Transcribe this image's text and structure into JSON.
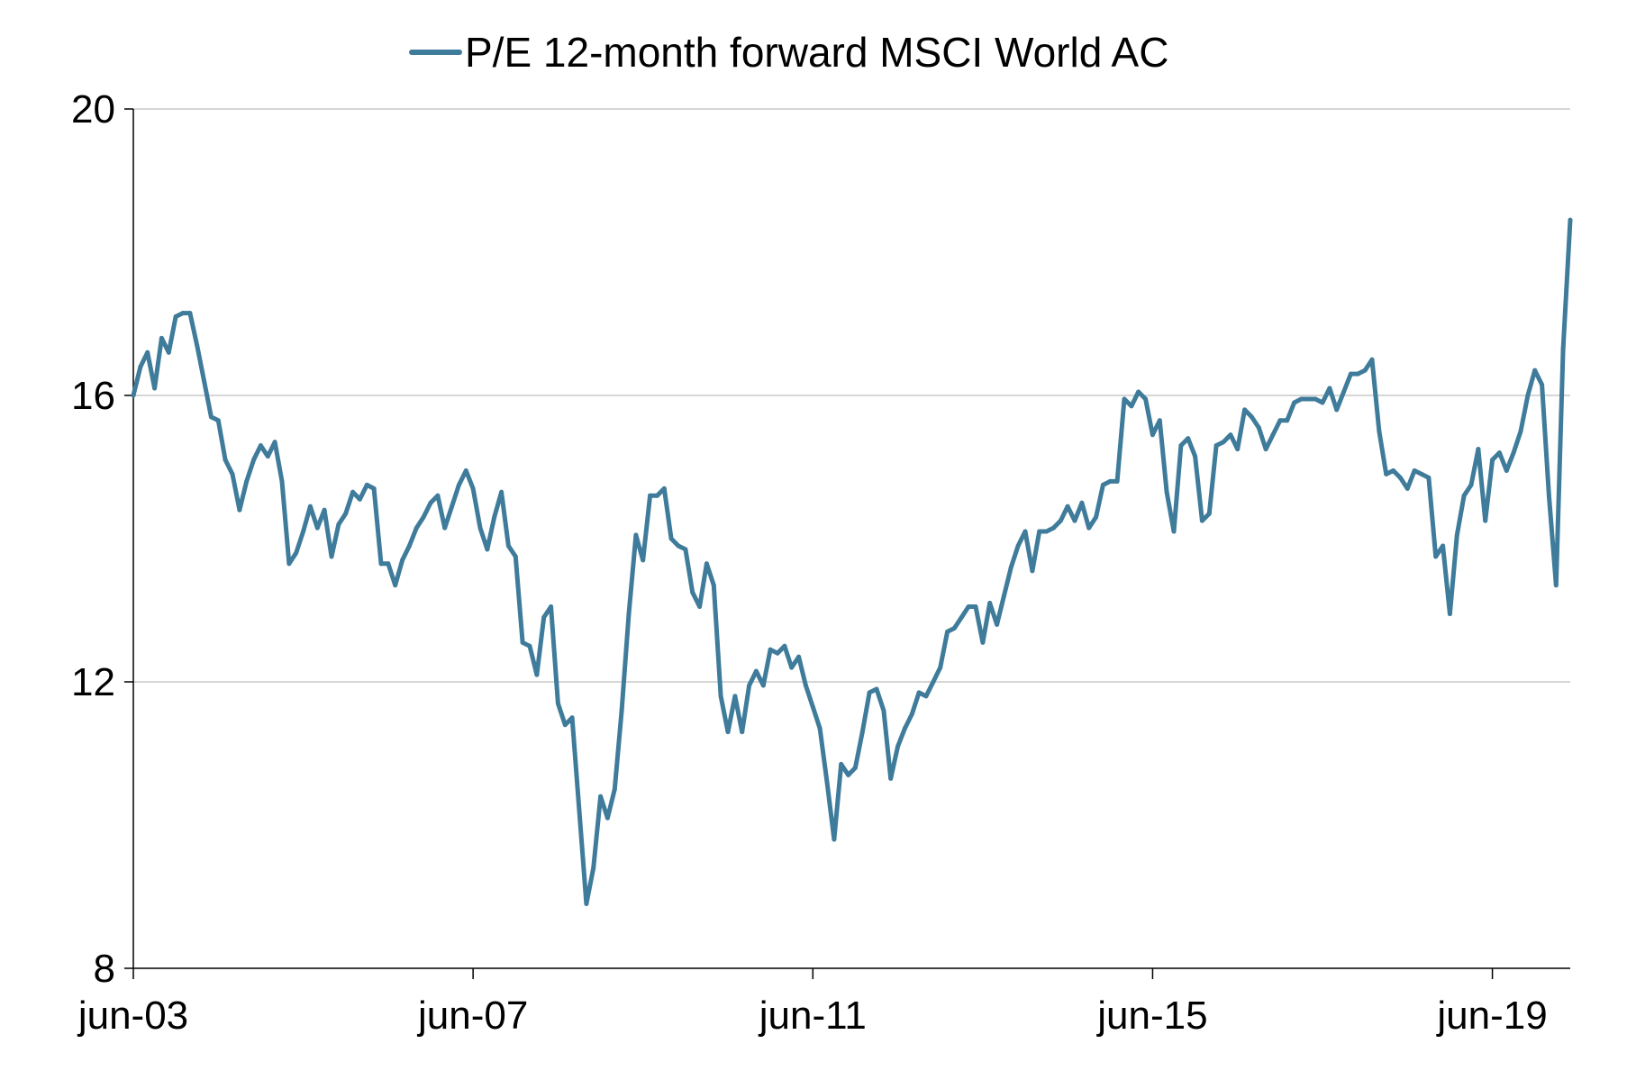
{
  "chart_data": {
    "type": "line",
    "legend": {
      "position": "top-center",
      "entries": [
        "P/E 12-month forward MSCI World AC"
      ]
    },
    "colors": {
      "series": "#3f7b9a",
      "grid": "#c8c8c8",
      "axis": "#000000"
    },
    "grid": true,
    "ylim": [
      8,
      20
    ],
    "yticks": [
      8,
      12,
      16,
      20
    ],
    "ytick_labels": [
      "8",
      "12",
      "16",
      "20"
    ],
    "xlim": [
      "2003-06",
      "2020-05"
    ],
    "xticks": [
      "2003-06",
      "2007-06",
      "2011-06",
      "2015-06",
      "2019-06"
    ],
    "xtick_labels": [
      "jun-03",
      "jun-07",
      "jun-11",
      "jun-15",
      "jun-19"
    ],
    "series": [
      {
        "name": "P/E 12-month forward MSCI World AC",
        "x": [
          "2003-06",
          "2003-07",
          "2003-08",
          "2003-09",
          "2003-10",
          "2003-11",
          "2003-12",
          "2004-01",
          "2004-02",
          "2004-03",
          "2004-04",
          "2004-05",
          "2004-06",
          "2004-07",
          "2004-08",
          "2004-09",
          "2004-10",
          "2004-11",
          "2004-12",
          "2005-01",
          "2005-02",
          "2005-03",
          "2005-04",
          "2005-05",
          "2005-06",
          "2005-07",
          "2005-08",
          "2005-09",
          "2005-10",
          "2005-11",
          "2005-12",
          "2006-01",
          "2006-02",
          "2006-03",
          "2006-04",
          "2006-05",
          "2006-06",
          "2006-07",
          "2006-08",
          "2006-09",
          "2006-10",
          "2006-11",
          "2006-12",
          "2007-01",
          "2007-02",
          "2007-03",
          "2007-04",
          "2007-05",
          "2007-06",
          "2007-07",
          "2007-08",
          "2007-09",
          "2007-10",
          "2007-11",
          "2007-12",
          "2008-01",
          "2008-02",
          "2008-03",
          "2008-04",
          "2008-05",
          "2008-06",
          "2008-07",
          "2008-08",
          "2008-09",
          "2008-10",
          "2008-11",
          "2008-12",
          "2009-01",
          "2009-02",
          "2009-03",
          "2009-04",
          "2009-05",
          "2009-06",
          "2009-07",
          "2009-08",
          "2009-09",
          "2009-10",
          "2009-11",
          "2009-12",
          "2010-01",
          "2010-02",
          "2010-03",
          "2010-04",
          "2010-05",
          "2010-06",
          "2010-07",
          "2010-08",
          "2010-09",
          "2010-10",
          "2010-11",
          "2010-12",
          "2011-01",
          "2011-02",
          "2011-03",
          "2011-04",
          "2011-05",
          "2011-06",
          "2011-07",
          "2011-08",
          "2011-09",
          "2011-10",
          "2011-11",
          "2011-12",
          "2012-01",
          "2012-02",
          "2012-03",
          "2012-04",
          "2012-05",
          "2012-06",
          "2012-07",
          "2012-08",
          "2012-09",
          "2012-10",
          "2012-11",
          "2012-12",
          "2013-01",
          "2013-02",
          "2013-03",
          "2013-04",
          "2013-05",
          "2013-06",
          "2013-07",
          "2013-08",
          "2013-09",
          "2013-10",
          "2013-11",
          "2013-12",
          "2014-01",
          "2014-02",
          "2014-03",
          "2014-04",
          "2014-05",
          "2014-06",
          "2014-07",
          "2014-08",
          "2014-09",
          "2014-10",
          "2014-11",
          "2014-12",
          "2015-01",
          "2015-02",
          "2015-03",
          "2015-04",
          "2015-05",
          "2015-06",
          "2015-07",
          "2015-08",
          "2015-09",
          "2015-10",
          "2015-11",
          "2015-12",
          "2016-01",
          "2016-02",
          "2016-03",
          "2016-04",
          "2016-05",
          "2016-06",
          "2016-07",
          "2016-08",
          "2016-09",
          "2016-10",
          "2016-11",
          "2016-12",
          "2017-01",
          "2017-02",
          "2017-03",
          "2017-04",
          "2017-05",
          "2017-06",
          "2017-07",
          "2017-08",
          "2017-09",
          "2017-10",
          "2017-11",
          "2017-12",
          "2018-01",
          "2018-02",
          "2018-03",
          "2018-04",
          "2018-05",
          "2018-06",
          "2018-07",
          "2018-08",
          "2018-09",
          "2018-10",
          "2018-11",
          "2018-12",
          "2019-01",
          "2019-02",
          "2019-03",
          "2019-04",
          "2019-05",
          "2019-06",
          "2019-07",
          "2019-08",
          "2019-09",
          "2019-10",
          "2019-11",
          "2019-12",
          "2020-01",
          "2020-02",
          "2020-03",
          "2020-04",
          "2020-05"
        ],
        "values": [
          16.0,
          16.4,
          16.6,
          16.1,
          16.8,
          16.6,
          17.1,
          17.15,
          17.15,
          16.7,
          16.2,
          15.7,
          15.65,
          15.1,
          14.9,
          14.4,
          14.8,
          15.1,
          15.3,
          15.15,
          15.35,
          14.8,
          13.65,
          13.8,
          14.1,
          14.45,
          14.15,
          14.4,
          13.75,
          14.2,
          14.35,
          14.65,
          14.55,
          14.75,
          14.7,
          13.65,
          13.65,
          13.35,
          13.7,
          13.9,
          14.15,
          14.3,
          14.5,
          14.6,
          14.15,
          14.45,
          14.75,
          14.95,
          14.7,
          14.15,
          13.85,
          14.3,
          14.65,
          13.9,
          13.75,
          12.55,
          12.5,
          12.1,
          12.9,
          13.05,
          11.7,
          11.4,
          11.5,
          10.2,
          8.9,
          9.4,
          10.4,
          10.1,
          10.5,
          11.6,
          12.95,
          14.05,
          13.7,
          14.6,
          14.6,
          14.7,
          14.0,
          13.9,
          13.85,
          13.25,
          13.05,
          13.65,
          13.35,
          11.8,
          11.3,
          11.8,
          11.3,
          11.95,
          12.15,
          11.95,
          12.45,
          12.4,
          12.5,
          12.2,
          12.35,
          11.95,
          11.65,
          11.35,
          10.6,
          9.8,
          10.85,
          10.7,
          10.8,
          11.3,
          11.85,
          11.9,
          11.6,
          10.65,
          11.1,
          11.35,
          11.55,
          11.85,
          11.8,
          12.0,
          12.2,
          12.7,
          12.75,
          12.9,
          13.05,
          13.05,
          12.55,
          13.1,
          12.8,
          13.2,
          13.6,
          13.9,
          14.1,
          13.55,
          14.1,
          14.1,
          14.15,
          14.25,
          14.45,
          14.25,
          14.5,
          14.15,
          14.3,
          14.75,
          14.8,
          14.8,
          15.95,
          15.85,
          16.05,
          15.95,
          15.45,
          15.65,
          14.65,
          14.1,
          15.3,
          15.4,
          15.15,
          14.25,
          14.35,
          15.3,
          15.35,
          15.45,
          15.25,
          15.8,
          15.7,
          15.55,
          15.25,
          15.45,
          15.65,
          15.65,
          15.9,
          15.95,
          15.95,
          15.95,
          15.9,
          16.1,
          15.8,
          16.05,
          16.3,
          16.3,
          16.35,
          16.5,
          15.5,
          14.9,
          14.95,
          14.85,
          14.7,
          14.95,
          14.9,
          14.85,
          13.75,
          13.9,
          12.95,
          14.05,
          14.6,
          14.75,
          15.25,
          14.25,
          15.1,
          15.2,
          14.95,
          15.2,
          15.5,
          16.0,
          16.35,
          16.15,
          14.6,
          13.35,
          16.65,
          18.45
        ]
      }
    ]
  }
}
